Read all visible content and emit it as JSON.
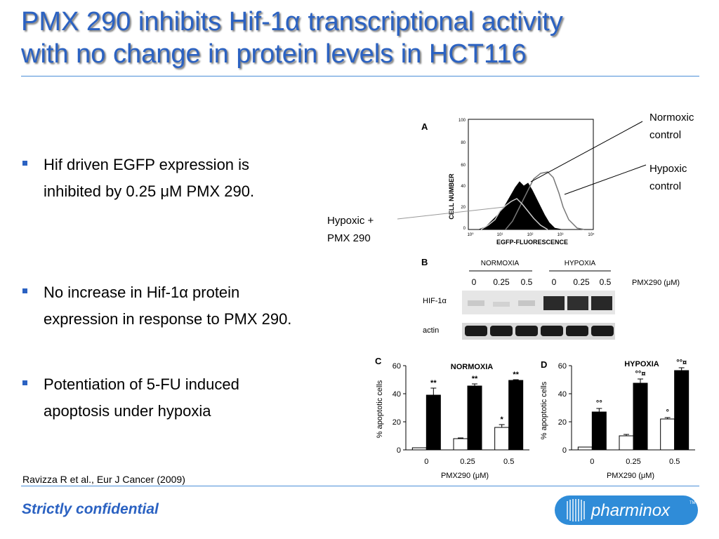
{
  "slide": {
    "title_line1": "PMX 290 inhibits Hif-1α transcriptional activity",
    "title_line2": "with no change in protein levels in HCT116",
    "bullets": [
      {
        "line1": "Hif driven EGFP expression is",
        "line2": "inhibited by 0.25 μM PMX 290."
      },
      {
        "line1": "No increase in Hif-1α protein",
        "line2": "expression in response to PMX 290."
      },
      {
        "line1": "Potentiation of 5-FU induced",
        "line2": "apoptosis under hypoxia"
      }
    ],
    "citation": "Ravizza R et al., Eur J Cancer (2009)",
    "footer": "Strictly confidential",
    "logo_text": "pharminox",
    "logo_tm": "TM",
    "colors": {
      "title_blue": "#2b62c2",
      "rule_blue": "#4a8fd8",
      "logo_blue": "#1f7fd0"
    }
  },
  "panel_a": {
    "letter": "A",
    "ylabel": "CELL NUMBER",
    "xlabel": "EGFP-FLUORESCENCE",
    "y_ticks": [
      "0",
      "20",
      "40",
      "60",
      "80",
      "100"
    ],
    "x_ticks": [
      "10⁰",
      "10¹",
      "10²",
      "10³",
      "10⁴"
    ],
    "annotations": {
      "normoxic": [
        "Normoxic",
        "control"
      ],
      "hypoxic": [
        "Hypoxic",
        "control"
      ],
      "hypoxic_pmx": [
        "Hypoxic +",
        "PMX 290"
      ]
    }
  },
  "panel_b": {
    "letter": "B",
    "group1": "NORMOXIA",
    "group2": "HYPOXIA",
    "concentrations": [
      "0",
      "0.25",
      "0.5",
      "0",
      "0.25",
      "0.5"
    ],
    "treatment_label": "PMX290 (μM)",
    "row1_label": "HIF-1α",
    "row2_label": "actin"
  },
  "chart_data": [
    {
      "type": "bar",
      "panel": "C",
      "title": "NORMOXIA",
      "categories": [
        "0",
        "0.25",
        "0.5"
      ],
      "xlabel": "PMX290 (μM)",
      "ylabel": "% apoptotic cells",
      "ylim": [
        0,
        60
      ],
      "y_ticks": [
        "0",
        "20",
        "40",
        "60"
      ],
      "series": [
        {
          "values": [
            1.5,
            8,
            16
          ],
          "errors": [
            0,
            0.5,
            2
          ],
          "color": "#ffffff"
        },
        {
          "values": [
            39,
            45.5,
            49.5
          ],
          "errors": [
            5,
            1.5,
            0.5
          ],
          "color": "#000000"
        }
      ],
      "significance": [
        {
          "series": 1,
          "index": 0,
          "label": "**"
        },
        {
          "series": 1,
          "index": 1,
          "label": "**"
        },
        {
          "series": 0,
          "index": 2,
          "label": "*"
        },
        {
          "series": 1,
          "index": 2,
          "label": "**"
        }
      ]
    },
    {
      "type": "bar",
      "panel": "D",
      "title": "HYPOXIA",
      "categories": [
        "0",
        "0.25",
        "0.5"
      ],
      "xlabel": "PMX290 (μM)",
      "ylabel": "% apoptotic cells",
      "ylim": [
        0,
        60
      ],
      "y_ticks": [
        "0",
        "20",
        "40",
        "60"
      ],
      "series": [
        {
          "values": [
            2,
            10,
            22
          ],
          "errors": [
            0,
            1,
            1
          ],
          "color": "#ffffff"
        },
        {
          "values": [
            27,
            47.5,
            56.5
          ],
          "errors": [
            2.5,
            3,
            2
          ],
          "color": "#000000"
        }
      ],
      "significance": [
        {
          "series": 1,
          "index": 0,
          "label": "°°"
        },
        {
          "series": 0,
          "index": 2,
          "label": "°"
        },
        {
          "series": 1,
          "index": 1,
          "label": "°°¤"
        },
        {
          "series": 1,
          "index": 2,
          "label": "°°¤"
        }
      ]
    }
  ]
}
